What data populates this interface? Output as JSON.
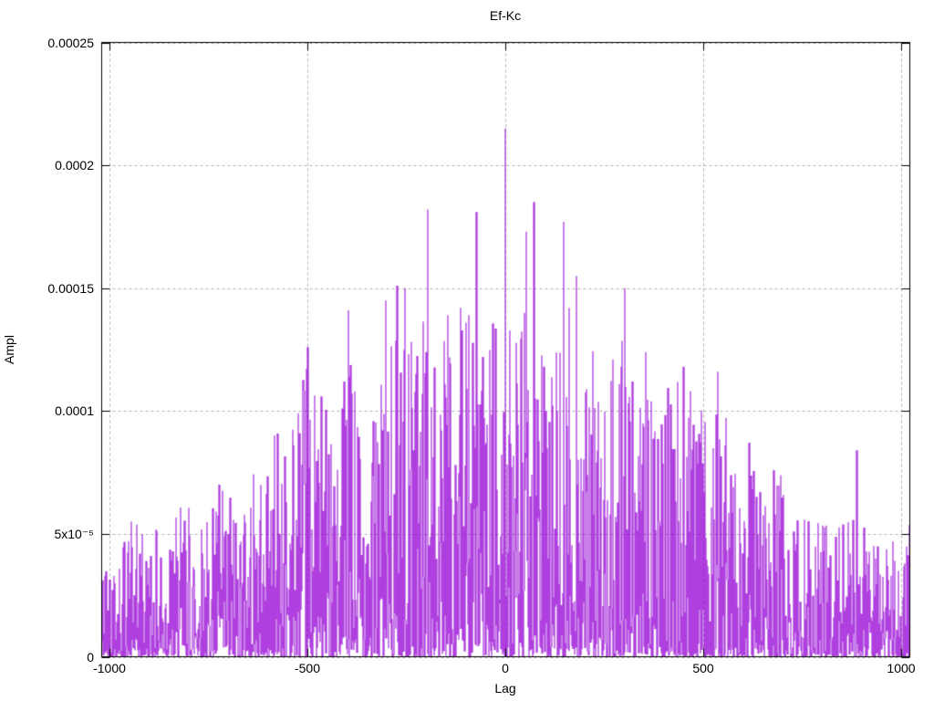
{
  "styling": {
    "background": "#ffffff",
    "series_color": "#9400d3",
    "grid_color": "#b0b0b0",
    "axis_color": "#000000"
  },
  "chart_data": {
    "type": "line",
    "title": "Ef-Kc",
    "xlabel": "Lag",
    "ylabel": "Ampl",
    "xlim": [
      -1020,
      1022
    ],
    "ylim": [
      0,
      0.00025
    ],
    "grid": true,
    "legend": "none",
    "xticks": [
      {
        "value": -1000,
        "label": "-1000"
      },
      {
        "value": -500,
        "label": "-500"
      },
      {
        "value": 0,
        "label": "0"
      },
      {
        "value": 500,
        "label": "500"
      },
      {
        "value": 1000,
        "label": "1000"
      }
    ],
    "yticks": [
      {
        "value": 0,
        "label": "0"
      },
      {
        "value": 5e-05,
        "label": "5x10⁻⁵"
      },
      {
        "value": 0.0001,
        "label": "0.0001"
      },
      {
        "value": 0.00015,
        "label": "0.00015"
      },
      {
        "value": 0.0002,
        "label": "0.0002"
      },
      {
        "value": 0.00025,
        "label": "0.00025"
      }
    ],
    "series_description": "Noisy cross-correlation amplitude vs lag; dense spiky noise whose typical local maximum follows the envelope below, plus the isolated outlier peaks listed.",
    "n_points": 2048,
    "seed": 42,
    "noise_exponent": 2.5,
    "envelope": [
      [
        -1020,
        4.6e-05
      ],
      [
        -950,
        5.6e-05
      ],
      [
        -900,
        5.2e-05
      ],
      [
        -850,
        5.4e-05
      ],
      [
        -800,
        6.8e-05
      ],
      [
        -760,
        5.8e-05
      ],
      [
        -720,
        7e-05
      ],
      [
        -650,
        7.4e-05
      ],
      [
        -600,
        8.2e-05
      ],
      [
        -560,
        0.000105
      ],
      [
        -500,
        0.00012
      ],
      [
        -460,
        0.000105
      ],
      [
        -420,
        0.000115
      ],
      [
        -380,
        0.000125
      ],
      [
        -340,
        0.000105
      ],
      [
        -300,
        0.000125
      ],
      [
        -250,
        0.000135
      ],
      [
        -200,
        0.00014
      ],
      [
        -150,
        0.000135
      ],
      [
        -100,
        0.00014
      ],
      [
        -50,
        0.000135
      ],
      [
        0,
        0.00014
      ],
      [
        50,
        0.00014
      ],
      [
        100,
        0.000135
      ],
      [
        150,
        0.00013
      ],
      [
        200,
        0.00013
      ],
      [
        250,
        0.00012
      ],
      [
        300,
        0.00013
      ],
      [
        350,
        0.000105
      ],
      [
        400,
        0.00011
      ],
      [
        450,
        0.000115
      ],
      [
        500,
        0.000105
      ],
      [
        550,
        0.0001
      ],
      [
        600,
        9.5e-05
      ],
      [
        650,
        8e-05
      ],
      [
        700,
        7.5e-05
      ],
      [
        750,
        6e-05
      ],
      [
        800,
        5.5e-05
      ],
      [
        850,
        6e-05
      ],
      [
        900,
        5.5e-05
      ],
      [
        950,
        4.5e-05
      ],
      [
        1022,
        5.6e-05
      ]
    ],
    "peaks": [
      [
        -723,
        7e-05
      ],
      [
        -499,
        0.000126
      ],
      [
        -397,
        0.000141
      ],
      [
        -303,
        0.000145
      ],
      [
        -274,
        0.000151
      ],
      [
        -254,
        0.00015
      ],
      [
        -196,
        0.000182
      ],
      [
        -146,
        0.000139
      ],
      [
        -114,
        0.000142
      ],
      [
        -93,
        0.000139
      ],
      [
        -73,
        0.000181
      ],
      [
        0,
        0.000215
      ],
      [
        52,
        0.000173
      ],
      [
        72,
        0.000185
      ],
      [
        147,
        0.000177
      ],
      [
        160,
        0.000142
      ],
      [
        179,
        0.000155
      ],
      [
        302,
        0.00015
      ],
      [
        355,
        0.000124
      ],
      [
        450,
        0.000118
      ],
      [
        536,
        0.000116
      ],
      [
        887,
        8.4e-05
      ]
    ]
  }
}
